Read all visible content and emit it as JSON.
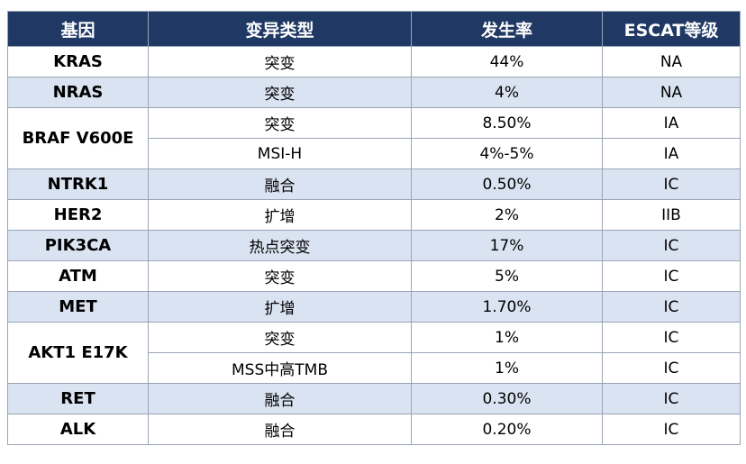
{
  "table": {
    "headers": [
      "基因",
      "变异类型",
      "发生率",
      "ESCAT等级"
    ],
    "rows": [
      {
        "gene": "KRAS",
        "variants": [
          {
            "type": "突变",
            "rate": "44%",
            "escat": "NA"
          }
        ]
      },
      {
        "gene": "NRAS",
        "variants": [
          {
            "type": "突变",
            "rate": "4%",
            "escat": "NA"
          }
        ]
      },
      {
        "gene": "BRAF V600E",
        "variants": [
          {
            "type": "突变",
            "rate": "8.50%",
            "escat": "IA"
          },
          {
            "type": "MSI-H",
            "rate": "4%-5%",
            "escat": "IA"
          }
        ]
      },
      {
        "gene": "NTRK1",
        "variants": [
          {
            "type": "融合",
            "rate": "0.50%",
            "escat": "IC"
          }
        ]
      },
      {
        "gene": "HER2",
        "variants": [
          {
            "type": "扩增",
            "rate": "2%",
            "escat": "IIB"
          }
        ]
      },
      {
        "gene": "PIK3CA",
        "variants": [
          {
            "type": "热点突变",
            "rate": "17%",
            "escat": "IC"
          }
        ]
      },
      {
        "gene": "ATM",
        "variants": [
          {
            "type": "突变",
            "rate": "5%",
            "escat": "IC"
          }
        ]
      },
      {
        "gene": "MET",
        "variants": [
          {
            "type": "扩增",
            "rate": "1.70%",
            "escat": "IC"
          }
        ]
      },
      {
        "gene": "AKT1 E17K",
        "variants": [
          {
            "type": "突变",
            "rate": "1%",
            "escat": "IC"
          },
          {
            "type": "MSS中高TMB",
            "rate": "1%",
            "escat": "IC"
          }
        ]
      },
      {
        "gene": "RET",
        "variants": [
          {
            "type": "融合",
            "rate": "0.30%",
            "escat": "IC"
          }
        ]
      },
      {
        "gene": "ALK",
        "variants": [
          {
            "type": "融合",
            "rate": "0.20%",
            "escat": "IC"
          }
        ]
      }
    ]
  },
  "colors": {
    "header_bg": "#1f3864",
    "header_text": "#ffffff",
    "stripe_bg": "#dae3f1",
    "row_bg": "#ffffff",
    "border": "#9aa5b5"
  }
}
